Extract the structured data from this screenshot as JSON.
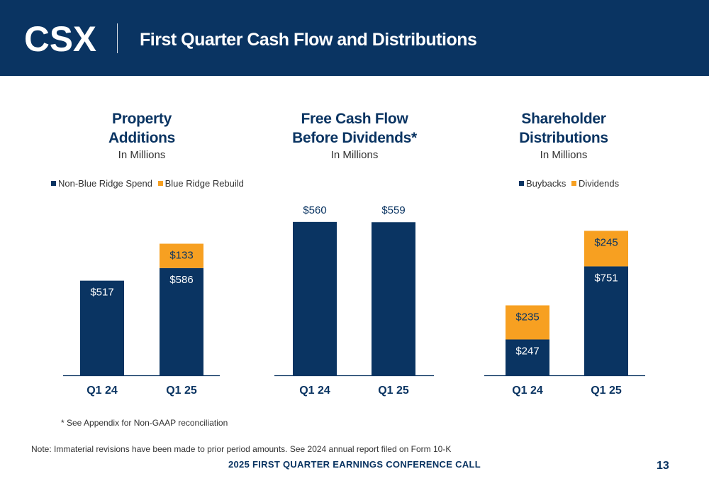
{
  "header": {
    "logo_text": "CSX",
    "title": "First Quarter Cash Flow and Distributions"
  },
  "colors": {
    "navy": "#0a3462",
    "orange": "#f7a021",
    "header_bg": "#0a3462"
  },
  "panels": [
    {
      "title_line1": "Property",
      "title_line2": "Additions",
      "subtitle": "In Millions",
      "legend": [
        "Non-Blue Ridge Spend",
        "Blue Ridge Rebuild"
      ]
    },
    {
      "title_line1": "Free Cash Flow",
      "title_line2": "Before Dividends*",
      "subtitle": "In Millions",
      "legend": []
    },
    {
      "title_line1": "Shareholder",
      "title_line2": "Distributions",
      "subtitle": "In Millions",
      "legend": [
        "Buybacks",
        "Dividends"
      ]
    }
  ],
  "chart_data": [
    {
      "type": "bar",
      "stacked": true,
      "categories": [
        "Q1 24",
        "Q1 25"
      ],
      "series": [
        {
          "name": "Non-Blue Ridge Spend",
          "values": [
            517,
            586
          ],
          "labels": [
            "$517",
            "$586"
          ]
        },
        {
          "name": "Blue Ridge Rebuild",
          "values": [
            0,
            133
          ],
          "labels": [
            "",
            "$133"
          ]
        }
      ],
      "ylim": [
        0,
        800
      ],
      "grid": false,
      "legend_position": "top-left"
    },
    {
      "type": "bar",
      "stacked": false,
      "categories": [
        "Q1 24",
        "Q1 25"
      ],
      "series": [
        {
          "values": [
            560,
            559
          ],
          "labels": [
            "$560",
            "$559"
          ]
        }
      ],
      "ylim": [
        0,
        620
      ],
      "grid": false,
      "legend_position": "none"
    },
    {
      "type": "bar",
      "stacked": true,
      "categories": [
        "Q1 24",
        "Q1 25"
      ],
      "series": [
        {
          "name": "Buybacks",
          "values": [
            247,
            751
          ],
          "labels": [
            "$247",
            "$751"
          ]
        },
        {
          "name": "Dividends",
          "values": [
            235,
            245
          ],
          "labels": [
            "$235",
            "$245"
          ]
        }
      ],
      "ylim": [
        0,
        1125
      ],
      "grid": false,
      "legend_position": "top-left"
    }
  ],
  "notes": {
    "appendix": "* See Appendix for Non-GAAP reconciliation",
    "revisions": "Note: Immaterial revisions have been made to prior period amounts. See 2024 annual report filed on Form 10-K"
  },
  "footer": {
    "text": "2025 FIRST QUARTER EARNINGS CONFERENCE CALL",
    "page_number": "13"
  }
}
